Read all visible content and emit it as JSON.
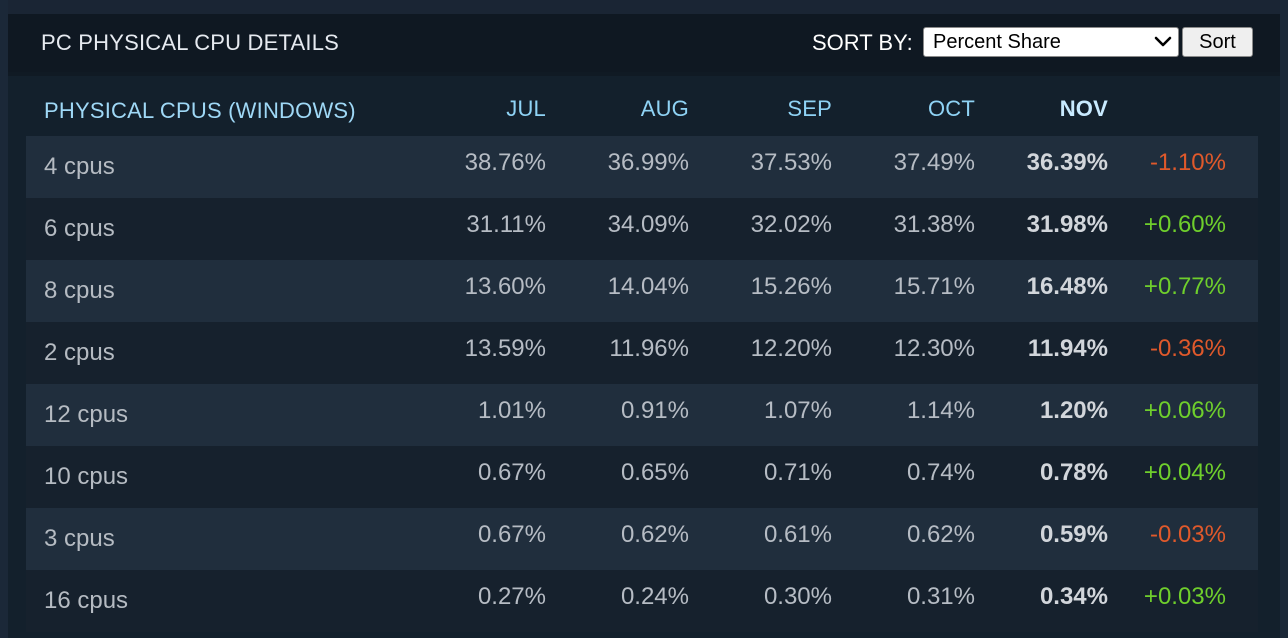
{
  "header": {
    "title": "PC PHYSICAL CPU DETAILS",
    "sort_label": "SORT BY:",
    "sort_selected": "Percent Share",
    "sort_button": "Sort"
  },
  "table": {
    "columns": [
      "PHYSICAL CPUS (WINDOWS)",
      "JUL",
      "AUG",
      "SEP",
      "OCT",
      "NOV"
    ],
    "rows": [
      {
        "label": "4 cpus",
        "jul": "38.76%",
        "aug": "36.99%",
        "sep": "37.53%",
        "oct": "37.49%",
        "nov": "36.39%",
        "change": "-1.10%",
        "trend": "neg"
      },
      {
        "label": "6 cpus",
        "jul": "31.11%",
        "aug": "34.09%",
        "sep": "32.02%",
        "oct": "31.38%",
        "nov": "31.98%",
        "change": "+0.60%",
        "trend": "pos"
      },
      {
        "label": "8 cpus",
        "jul": "13.60%",
        "aug": "14.04%",
        "sep": "15.26%",
        "oct": "15.71%",
        "nov": "16.48%",
        "change": "+0.77%",
        "trend": "pos"
      },
      {
        "label": "2 cpus",
        "jul": "13.59%",
        "aug": "11.96%",
        "sep": "12.20%",
        "oct": "12.30%",
        "nov": "11.94%",
        "change": "-0.36%",
        "trend": "neg"
      },
      {
        "label": "12 cpus",
        "jul": "1.01%",
        "aug": "0.91%",
        "sep": "1.07%",
        "oct": "1.14%",
        "nov": "1.20%",
        "change": "+0.06%",
        "trend": "pos"
      },
      {
        "label": "10 cpus",
        "jul": "0.67%",
        "aug": "0.65%",
        "sep": "0.71%",
        "oct": "0.74%",
        "nov": "0.78%",
        "change": "+0.04%",
        "trend": "pos"
      },
      {
        "label": "3 cpus",
        "jul": "0.67%",
        "aug": "0.62%",
        "sep": "0.61%",
        "oct": "0.62%",
        "nov": "0.59%",
        "change": "-0.03%",
        "trend": "neg"
      },
      {
        "label": "16 cpus",
        "jul": "0.27%",
        "aug": "0.24%",
        "sep": "0.30%",
        "oct": "0.31%",
        "nov": "0.34%",
        "change": "+0.03%",
        "trend": "pos"
      }
    ]
  },
  "colors": {
    "negative": "#e0592b",
    "positive": "#6fcf2c",
    "header_text": "#8fd3f5"
  }
}
